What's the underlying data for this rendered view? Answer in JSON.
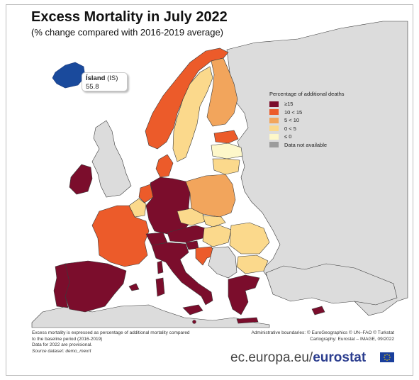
{
  "header": {
    "title": "Excess Mortality in July 2022",
    "subtitle": "(% change compared with 2016-2019 average)"
  },
  "callout": {
    "name": "Ísland",
    "code": "(IS)",
    "value": "55.8"
  },
  "legend": {
    "title": "Percentage of additional deaths",
    "items": [
      {
        "label": "≥15",
        "color": "#7b0d2c"
      },
      {
        "label": "10   < 15",
        "color": "#ec5b2a"
      },
      {
        "label": "5    < 10",
        "color": "#f2a55c"
      },
      {
        "label": "0    < 5",
        "color": "#fbd98c"
      },
      {
        "label": "≤ 0",
        "color": "#fdf7c9"
      },
      {
        "label": "Data not available",
        "color": "#9c9c9c"
      }
    ]
  },
  "colors": {
    "ge15": "#7b0d2c",
    "c10_15": "#ec5b2a",
    "c5_10": "#f2a55c",
    "c0_5": "#fbd98c",
    "le0": "#fdf7c9",
    "nodata": "#9c9c9c",
    "nonmember": "#dcdcdc",
    "sea": "#ffffff",
    "border": "#3a3a3a",
    "iceland": "#1a4a9c"
  },
  "footnotes": {
    "line1": "Excess mortality is expressed as percentage of additional mortality compared",
    "line2": "to the baseline period (2016-2019)",
    "line3": "Data for 2022 are provisional.",
    "line4": "Source dataset: demo_mexrt",
    "admin": "Administrative boundaries: © EuroGeographics © UN–FAO © Turkstat",
    "carto": "Cartography: Eurostat – IMAGE, 09/2022"
  },
  "brand": {
    "site": "ec.europa.eu/",
    "name": "eurostat"
  }
}
